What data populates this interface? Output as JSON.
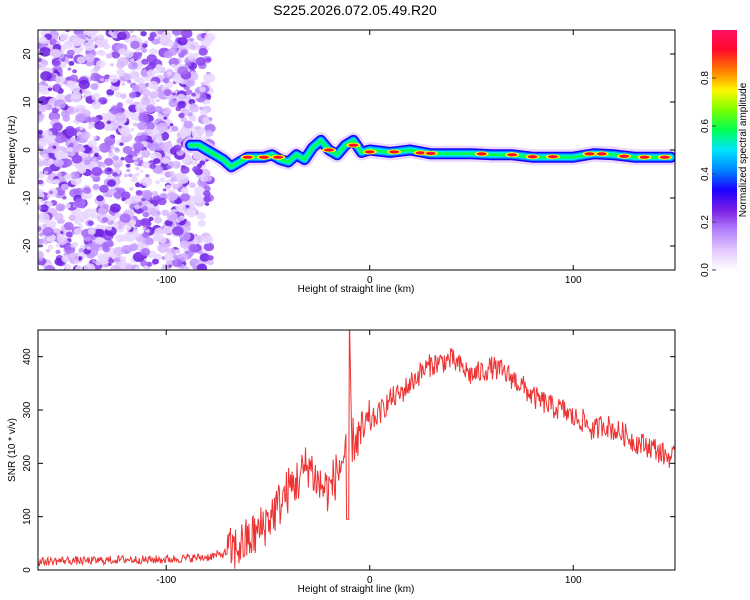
{
  "figure": {
    "title": "S225.2026.072.05.49.R20"
  },
  "chart_data": [
    {
      "type": "heatmap",
      "title": "",
      "xlabel": "Height of straight line (km)",
      "ylabel": "Frequency (Hz)",
      "xlim": [
        -163,
        150
      ],
      "ylim": [
        -25,
        25
      ],
      "xticks": [
        -100,
        0,
        100
      ],
      "yticks": [
        -20,
        -10,
        0,
        10,
        20
      ],
      "grid": false,
      "noise_region_x": [
        -163,
        -80
      ],
      "ridge": {
        "x": [
          -88,
          -84,
          -80,
          -76,
          -72,
          -68,
          -64,
          -60,
          -56,
          -52,
          -48,
          -44,
          -40,
          -36,
          -32,
          -28,
          -24,
          -20,
          -16,
          -12,
          -8,
          -4,
          0,
          10,
          20,
          30,
          40,
          50,
          60,
          70,
          80,
          90,
          100,
          110,
          120,
          130,
          148
        ],
        "y": [
          1,
          1,
          0,
          -1,
          -2,
          -3.5,
          -2.5,
          -1.5,
          -1.5,
          -1.5,
          -1,
          -2,
          -2.5,
          -1,
          -2,
          0.5,
          2,
          0,
          -1,
          1,
          2,
          -0.5,
          0,
          -0.5,
          0,
          -0.8,
          -0.8,
          -0.8,
          -1,
          -1,
          -1.5,
          -1.5,
          -1.5,
          -0.8,
          -1,
          -1.5,
          -1.5
        ]
      },
      "colorbar": {
        "label": "Normalized spectral amplitude",
        "range": [
          0,
          1
        ],
        "ticks": [
          "0.0",
          "0.2",
          "0.4",
          "0.6",
          "0.8"
        ],
        "colors": [
          "#ffffff",
          "#e3c8ff",
          "#b27ffb",
          "#7a1fe6",
          "#1a00ff",
          "#0087ff",
          "#00e5ff",
          "#00ff52",
          "#7aff00",
          "#fff500",
          "#ff7a00",
          "#ff0a2a",
          "#ff0f62"
        ]
      }
    },
    {
      "type": "line",
      "title": "",
      "xlabel": "Height of straight line (km)",
      "ylabel": "SNR (10 * v/v)",
      "xlim": [
        -163,
        150
      ],
      "ylim": [
        0,
        450
      ],
      "xticks": [
        -100,
        0,
        100
      ],
      "yticks": [
        0,
        100,
        200,
        300,
        400
      ],
      "grid": false,
      "color": "#ee3333",
      "series": [
        {
          "x": [
            -163,
            -150,
            -140,
            -130,
            -120,
            -110,
            -100,
            -90,
            -80,
            -72,
            -66,
            -60,
            -55,
            -50,
            -45,
            -40,
            -35,
            -30,
            -25,
            -20,
            -15,
            -10,
            -5,
            0,
            5,
            10,
            15,
            20,
            25,
            30,
            35,
            40,
            45,
            50,
            55,
            60,
            65,
            70,
            75,
            80,
            85,
            90,
            95,
            100,
            105,
            110,
            115,
            120,
            125,
            130,
            135,
            140,
            145,
            150
          ],
          "values": [
            15,
            18,
            17,
            18,
            20,
            19,
            20,
            22,
            24,
            30,
            40,
            55,
            70,
            95,
            120,
            150,
            170,
            200,
            160,
            150,
            190,
            240,
            250,
            275,
            295,
            320,
            330,
            350,
            370,
            385,
            390,
            395,
            380,
            365,
            372,
            380,
            372,
            360,
            345,
            325,
            315,
            305,
            300,
            285,
            280,
            260,
            275,
            262,
            255,
            240,
            235,
            228,
            215,
            210
          ]
        }
      ]
    }
  ]
}
